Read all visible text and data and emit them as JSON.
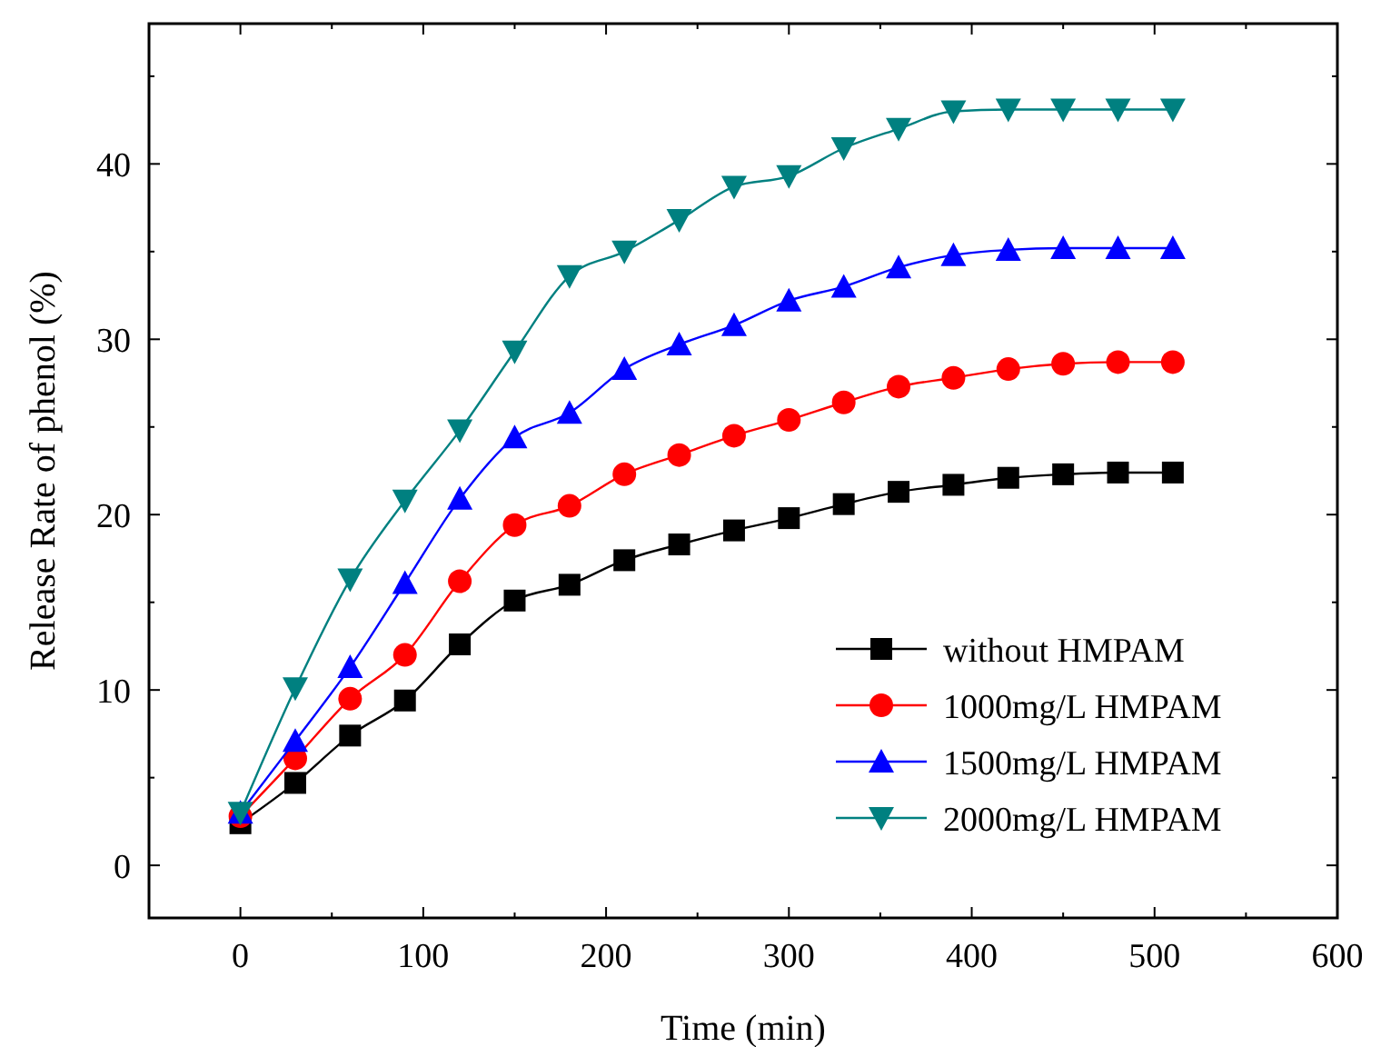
{
  "chart_data": {
    "type": "line",
    "xlabel": "Time (min)",
    "ylabel": "Release Rate of phenol (%)",
    "x": [
      0,
      30,
      60,
      90,
      120,
      150,
      180,
      210,
      240,
      270,
      300,
      330,
      360,
      390,
      420,
      450,
      480,
      510
    ],
    "xlim": [
      -50,
      600
    ],
    "xticks": [
      0,
      {
        "value": 50,
        "label": null
      },
      100,
      {
        "value": 150,
        "label": null
      },
      200,
      {
        "value": 250,
        "label": null
      },
      300,
      {
        "value": 350,
        "label": null
      },
      400,
      {
        "value": 450,
        "label": null
      },
      500,
      {
        "value": 550,
        "label": null
      },
      600
    ],
    "ylim": [
      -3,
      48
    ],
    "yticks": [
      0,
      {
        "value": 5,
        "label": null
      },
      10,
      {
        "value": 15,
        "label": null
      },
      20,
      {
        "value": 25,
        "label": null
      },
      30,
      {
        "value": 35,
        "label": null
      },
      40,
      {
        "value": 45,
        "label": null
      }
    ],
    "grid": false,
    "legend": "bottom right",
    "line_style": "solid",
    "series": [
      {
        "name": "without HMPAM",
        "color": "#000000",
        "marker": "square",
        "values": [
          2.4,
          4.7,
          7.4,
          9.4,
          12.6,
          15.1,
          16.0,
          17.4,
          18.3,
          19.1,
          19.8,
          20.6,
          21.3,
          21.7,
          22.1,
          22.3,
          22.4,
          22.4
        ]
      },
      {
        "name": "1000mg/L HMPAM",
        "color": "#ff0000",
        "marker": "circle",
        "values": [
          2.8,
          6.1,
          9.5,
          12.0,
          16.2,
          19.4,
          20.5,
          22.3,
          23.4,
          24.5,
          25.4,
          26.4,
          27.3,
          27.8,
          28.3,
          28.6,
          28.7,
          28.7
        ]
      },
      {
        "name": "1500mg/L HMPAM",
        "color": "#0000ff",
        "marker": "triangle",
        "values": [
          3.0,
          7.1,
          11.3,
          16.1,
          20.9,
          24.4,
          25.8,
          28.3,
          29.7,
          30.8,
          32.2,
          33.0,
          34.1,
          34.8,
          35.1,
          35.2,
          35.2,
          35.2
        ]
      },
      {
        "name": "2000mg/L HMPAM",
        "color": "#008080",
        "marker": "triangle-down",
        "values": [
          3.0,
          10.1,
          16.3,
          20.8,
          24.8,
          29.3,
          33.6,
          35.0,
          36.8,
          38.7,
          39.3,
          40.9,
          42.0,
          43.0,
          43.1,
          43.1,
          43.1,
          43.1
        ]
      }
    ]
  }
}
